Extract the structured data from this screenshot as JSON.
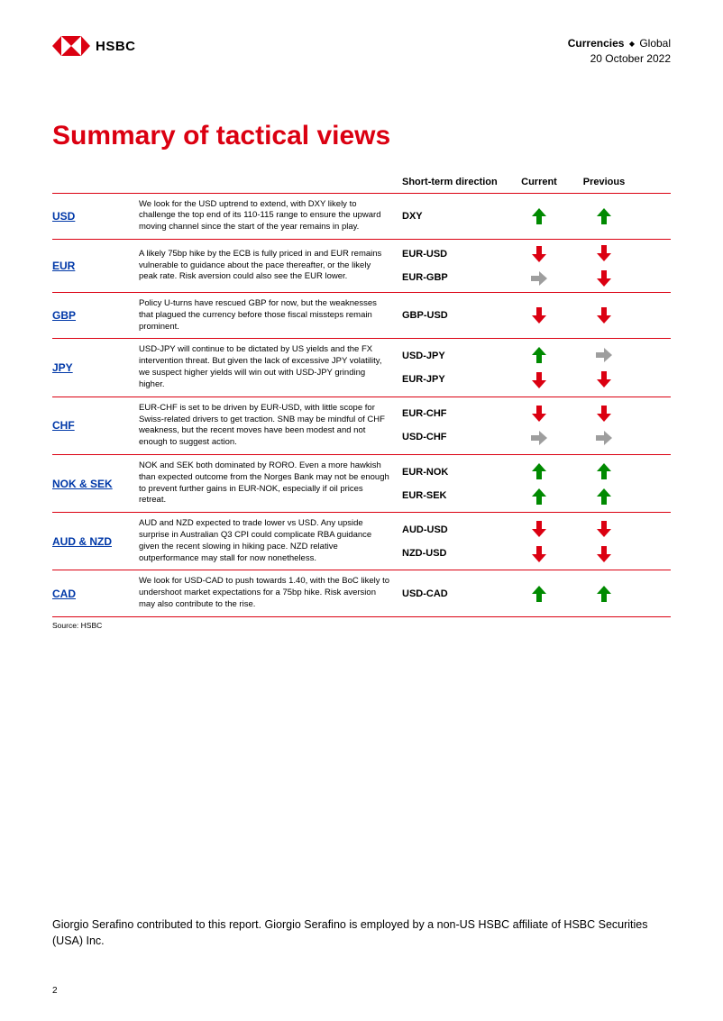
{
  "brand": {
    "name": "HSBC"
  },
  "header": {
    "category": "Currencies",
    "region": "Global",
    "date": "20 October 2022"
  },
  "title": "Summary of tactical views",
  "columns": {
    "short_term": "Short-term direction",
    "current": "Current",
    "previous": "Previous"
  },
  "arrow_colors": {
    "up": "#008a00",
    "down": "#db0011",
    "flat": "#9e9e9e"
  },
  "rows": [
    {
      "ccy": "USD",
      "desc": "We look for the USD uptrend to extend, with DXY likely to challenge the top end of its 110-115 range to ensure the upward moving channel since the start of the year remains in play.",
      "pairs": [
        {
          "label": "DXY",
          "current": "up",
          "previous": "up"
        }
      ]
    },
    {
      "ccy": "EUR",
      "desc": "A likely 75bp hike by the ECB is fully priced in and EUR remains vulnerable to guidance about the pace thereafter, or the likely peak rate. Risk aversion could also see the EUR lower.",
      "pairs": [
        {
          "label": "EUR-USD",
          "current": "down",
          "previous": "down"
        },
        {
          "label": "EUR-GBP",
          "current": "flat",
          "previous": "down"
        }
      ]
    },
    {
      "ccy": "GBP",
      "desc": "Policy U-turns have rescued GBP for now, but the weaknesses that plagued the currency before those fiscal missteps remain prominent.",
      "pairs": [
        {
          "label": "GBP-USD",
          "current": "down",
          "previous": "down"
        }
      ]
    },
    {
      "ccy": "JPY",
      "desc": "USD-JPY will continue to be dictated by US yields and the FX intervention threat. But given the lack of excessive JPY volatility, we suspect higher yields will win out with USD-JPY grinding higher.",
      "pairs": [
        {
          "label": "USD-JPY",
          "current": "up",
          "previous": "flat"
        },
        {
          "label": "EUR-JPY",
          "current": "down",
          "previous": "down"
        }
      ]
    },
    {
      "ccy": "CHF",
      "desc": "EUR-CHF is set to be driven by EUR-USD, with little scope for Swiss-related drivers to get traction. SNB may be mindful of CHF weakness, but the recent moves have been modest and not enough to suggest action.",
      "pairs": [
        {
          "label": "EUR-CHF",
          "current": "down",
          "previous": "down"
        },
        {
          "label": "USD-CHF",
          "current": "flat",
          "previous": "flat"
        }
      ]
    },
    {
      "ccy": "NOK & SEK",
      "desc": "NOK and SEK both dominated by RORO. Even a more hawkish than expected outcome from the Norges Bank may not be enough to prevent further gains in EUR-NOK, especially if oil prices retreat.",
      "pairs": [
        {
          "label": "EUR-NOK",
          "current": "up",
          "previous": "up"
        },
        {
          "label": "EUR-SEK",
          "current": "up",
          "previous": "up"
        }
      ]
    },
    {
      "ccy": "AUD & NZD",
      "desc": "AUD and NZD expected to trade lower vs USD. Any upside surprise in Australian Q3 CPI could complicate RBA guidance given the recent slowing in hiking pace. NZD relative outperformance may stall for now nonetheless.",
      "pairs": [
        {
          "label": "AUD-USD",
          "current": "down",
          "previous": "down"
        },
        {
          "label": "NZD-USD",
          "current": "down",
          "previous": "down"
        }
      ]
    },
    {
      "ccy": "CAD",
      "desc": "We look for USD-CAD to push towards 1.40, with the BoC likely to undershoot market expectations for a 75bp hike. Risk aversion may also contribute to the rise.",
      "pairs": [
        {
          "label": "USD-CAD",
          "current": "up",
          "previous": "up"
        }
      ]
    }
  ],
  "source": "Source: HSBC",
  "footer_note": "Giorgio Serafino contributed to this report. Giorgio Serafino is employed by a non-US HSBC affiliate of HSBC Securities (USA) Inc.",
  "page_number": "2"
}
